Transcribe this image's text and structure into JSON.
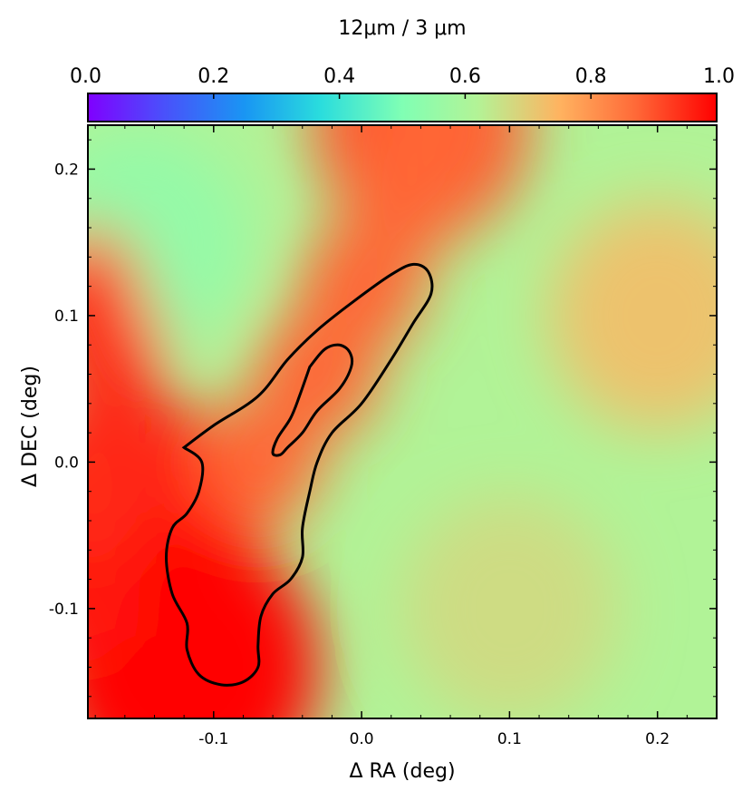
{
  "chart_data": {
    "type": "heatmap",
    "xlabel": "Δ RA (deg)",
    "ylabel": "Δ DEC (deg)",
    "xlim": [
      -0.185,
      0.24
    ],
    "ylim": [
      -0.175,
      0.23
    ],
    "xticks": [
      -0.1,
      0.0,
      0.1,
      0.2
    ],
    "xtick_labels": [
      "-0.1",
      "0.0",
      "0.1",
      "0.2"
    ],
    "yticks": [
      -0.1,
      0.0,
      0.1,
      0.2
    ],
    "ytick_labels": [
      "-0.1",
      "0.0",
      "0.1",
      "0.2"
    ],
    "colorbar": {
      "label": "12μm / 3 μm",
      "range": [
        0.0,
        1.0
      ],
      "ticks": [
        0.0,
        0.2,
        0.4,
        0.6,
        0.8,
        1.0
      ],
      "tick_labels": [
        "0.0",
        "0.2",
        "0.4",
        "0.6",
        "0.8",
        "1.0"
      ],
      "colormap": "rainbow"
    },
    "field_features": [
      {
        "description_value": "background",
        "value": 0.62
      },
      {
        "x": -0.15,
        "y": 0.15,
        "value": 0.55
      },
      {
        "x": 0.2,
        "y": 0.1,
        "value": 0.72
      },
      {
        "x": 0.1,
        "y": -0.1,
        "value": 0.67
      },
      {
        "x": -0.12,
        "y": -0.14,
        "value": 1.0
      },
      {
        "x": -0.16,
        "y": -0.05,
        "value": 0.97
      },
      {
        "x": 0.04,
        "y": 0.23,
        "value": 0.9
      }
    ],
    "contours": [
      {
        "name": "outer",
        "points": [
          [
            -0.12,
            0.01
          ],
          [
            -0.1,
            0.025
          ],
          [
            -0.07,
            0.045
          ],
          [
            -0.05,
            0.07
          ],
          [
            -0.03,
            0.09
          ],
          [
            -0.005,
            0.11
          ],
          [
            0.02,
            0.128
          ],
          [
            0.035,
            0.135
          ],
          [
            0.045,
            0.13
          ],
          [
            0.047,
            0.115
          ],
          [
            0.035,
            0.095
          ],
          [
            0.02,
            0.07
          ],
          [
            0.0,
            0.04
          ],
          [
            -0.02,
            0.02
          ],
          [
            -0.03,
            0.0
          ],
          [
            -0.035,
            -0.02
          ],
          [
            -0.04,
            -0.045
          ],
          [
            -0.04,
            -0.065
          ],
          [
            -0.048,
            -0.08
          ],
          [
            -0.06,
            -0.09
          ],
          [
            -0.068,
            -0.105
          ],
          [
            -0.07,
            -0.125
          ],
          [
            -0.07,
            -0.14
          ],
          [
            -0.08,
            -0.15
          ],
          [
            -0.095,
            -0.152
          ],
          [
            -0.11,
            -0.145
          ],
          [
            -0.118,
            -0.128
          ],
          [
            -0.118,
            -0.11
          ],
          [
            -0.128,
            -0.09
          ],
          [
            -0.132,
            -0.065
          ],
          [
            -0.128,
            -0.045
          ],
          [
            -0.118,
            -0.035
          ],
          [
            -0.11,
            -0.02
          ],
          [
            -0.108,
            0.0
          ],
          [
            -0.12,
            0.01
          ]
        ]
      },
      {
        "name": "inner",
        "points": [
          [
            -0.035,
            0.065
          ],
          [
            -0.025,
            0.077
          ],
          [
            -0.015,
            0.08
          ],
          [
            -0.008,
            0.075
          ],
          [
            -0.007,
            0.065
          ],
          [
            -0.015,
            0.05
          ],
          [
            -0.03,
            0.035
          ],
          [
            -0.04,
            0.02
          ],
          [
            -0.05,
            0.01
          ],
          [
            -0.055,
            0.005
          ],
          [
            -0.06,
            0.006
          ],
          [
            -0.057,
            0.016
          ],
          [
            -0.048,
            0.03
          ],
          [
            -0.042,
            0.045
          ],
          [
            -0.035,
            0.065
          ]
        ]
      }
    ]
  }
}
